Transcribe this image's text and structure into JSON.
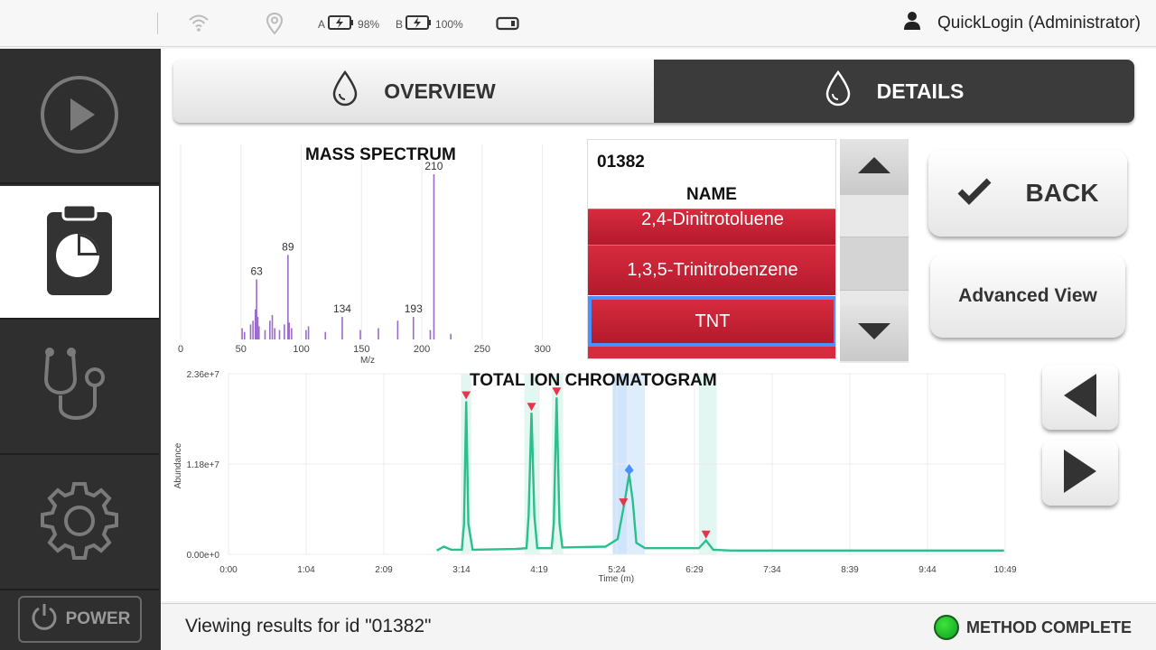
{
  "topbar": {
    "battery_a_label": "A",
    "battery_a_pct": "98%",
    "battery_b_label": "B",
    "battery_b_pct": "100%",
    "user": "QuickLogin (Administrator)",
    "icons": [
      "wifi-icon",
      "location-icon",
      "battery-charging-icon",
      "battery-charging-icon",
      "storage-icon",
      "user-icon"
    ]
  },
  "sidebar": {
    "items": [
      {
        "name": "run",
        "icon": "play-icon"
      },
      {
        "name": "results",
        "icon": "clipboard-chart-icon",
        "active": true
      },
      {
        "name": "diagnostics",
        "icon": "stethoscope-icon"
      },
      {
        "name": "settings",
        "icon": "gear-icon"
      }
    ],
    "power_label": "POWER"
  },
  "tabs": {
    "overview_label": "OVERVIEW",
    "details_label": "DETAILS",
    "active": "DETAILS"
  },
  "results": {
    "id": "01382",
    "name_header": "NAME",
    "hits": [
      "2,4-Dinitrotoluene",
      "1,3,5-Trinitrobenzene",
      "TNT"
    ],
    "selected": "TNT"
  },
  "buttons": {
    "back_label": "BACK",
    "advanced_label": "Advanced View"
  },
  "status": {
    "message": "Viewing results for id \"01382\"",
    "method_label": "METHOD COMPLETE",
    "method_color": "#1cb02a"
  },
  "colors": {
    "accent_red": "#c8233a",
    "spectrum_purple": "#9b6cc9",
    "tic_green": "#2bbf8c",
    "selected_blue": "#4a90ff"
  },
  "chart_data": [
    {
      "type": "bar",
      "title": "MASS SPECTRUM",
      "xlabel": "M/z",
      "ylabel": "",
      "xlim": [
        0,
        310
      ],
      "xticks": [
        0,
        50,
        100,
        150,
        200,
        250,
        300
      ],
      "grid": true,
      "peaks": [
        {
          "mz": 51,
          "rel": 0.06
        },
        {
          "mz": 53,
          "rel": 0.04
        },
        {
          "mz": 58,
          "rel": 0.08
        },
        {
          "mz": 60,
          "rel": 0.1
        },
        {
          "mz": 62,
          "rel": 0.16
        },
        {
          "mz": 63,
          "rel": 0.32
        },
        {
          "mz": 64,
          "rel": 0.12
        },
        {
          "mz": 65,
          "rel": 0.07
        },
        {
          "mz": 70,
          "rel": 0.05
        },
        {
          "mz": 74,
          "rel": 0.1
        },
        {
          "mz": 76,
          "rel": 0.13
        },
        {
          "mz": 78,
          "rel": 0.06
        },
        {
          "mz": 82,
          "rel": 0.05
        },
        {
          "mz": 86,
          "rel": 0.08
        },
        {
          "mz": 89,
          "rel": 0.45
        },
        {
          "mz": 90,
          "rel": 0.09
        },
        {
          "mz": 92,
          "rel": 0.06
        },
        {
          "mz": 104,
          "rel": 0.05
        },
        {
          "mz": 106,
          "rel": 0.07
        },
        {
          "mz": 120,
          "rel": 0.04
        },
        {
          "mz": 134,
          "rel": 0.12
        },
        {
          "mz": 149,
          "rel": 0.05
        },
        {
          "mz": 164,
          "rel": 0.06
        },
        {
          "mz": 180,
          "rel": 0.1
        },
        {
          "mz": 193,
          "rel": 0.12
        },
        {
          "mz": 207,
          "rel": 0.05
        },
        {
          "mz": 210,
          "rel": 0.88
        },
        {
          "mz": 224,
          "rel": 0.03
        }
      ],
      "labels": [
        {
          "mz": 63,
          "text": "63"
        },
        {
          "mz": 89,
          "text": "89"
        },
        {
          "mz": 134,
          "text": "134"
        },
        {
          "mz": 193,
          "text": "193"
        },
        {
          "mz": 210,
          "text": "210"
        }
      ]
    },
    {
      "type": "line",
      "title": "TOTAL ION CHROMATOGRAM",
      "xlabel": "Time (m)",
      "ylabel": "Abundance",
      "ylim": [
        0,
        23600000
      ],
      "yticks": [
        "0.00e+0",
        "1.18e+7",
        "2.36e+7"
      ],
      "xticks": [
        "0:00",
        "1:04",
        "2:09",
        "3:14",
        "4:19",
        "5:24",
        "6:29",
        "7:34",
        "8:39",
        "9:44",
        "10:49"
      ],
      "grid": true,
      "series": [
        {
          "points": [
            [
              2.9,
              500000.0
            ],
            [
              3.0,
              1000000.0
            ],
            [
              3.1,
              600000.0
            ],
            [
              3.25,
              600000.0
            ],
            [
              3.28,
              4000000.0
            ],
            [
              3.31,
              20000000.0
            ],
            [
              3.34,
              4000000.0
            ],
            [
              3.4,
              600000.0
            ],
            [
              4.0,
              700000.0
            ],
            [
              4.15,
              800000.0
            ],
            [
              4.18,
              5000000.0
            ],
            [
              4.22,
              18500000.0
            ],
            [
              4.26,
              5000000.0
            ],
            [
              4.3,
              800000.0
            ],
            [
              4.5,
              800000.0
            ],
            [
              4.53,
              4000000.0
            ],
            [
              4.57,
              20500000.0
            ],
            [
              4.61,
              4000000.0
            ],
            [
              4.65,
              900000.0
            ],
            [
              5.25,
              1000000.0
            ],
            [
              5.42,
              2000000.0
            ],
            [
              5.52,
              7000000.0
            ],
            [
              5.58,
              10500000.0
            ],
            [
              5.63,
              7000000.0
            ],
            [
              5.68,
              1500000.0
            ],
            [
              5.8,
              800000.0
            ],
            [
              6.55,
              800000.0
            ],
            [
              6.65,
              1800000.0
            ],
            [
              6.75,
              600000.0
            ],
            [
              7.0,
              500000.0
            ],
            [
              10.8,
              500000.0
            ]
          ]
        }
      ],
      "peak_markers": [
        3.31,
        4.22,
        4.57,
        5.5,
        6.65
      ],
      "selected_peak": 5.58
    }
  ]
}
